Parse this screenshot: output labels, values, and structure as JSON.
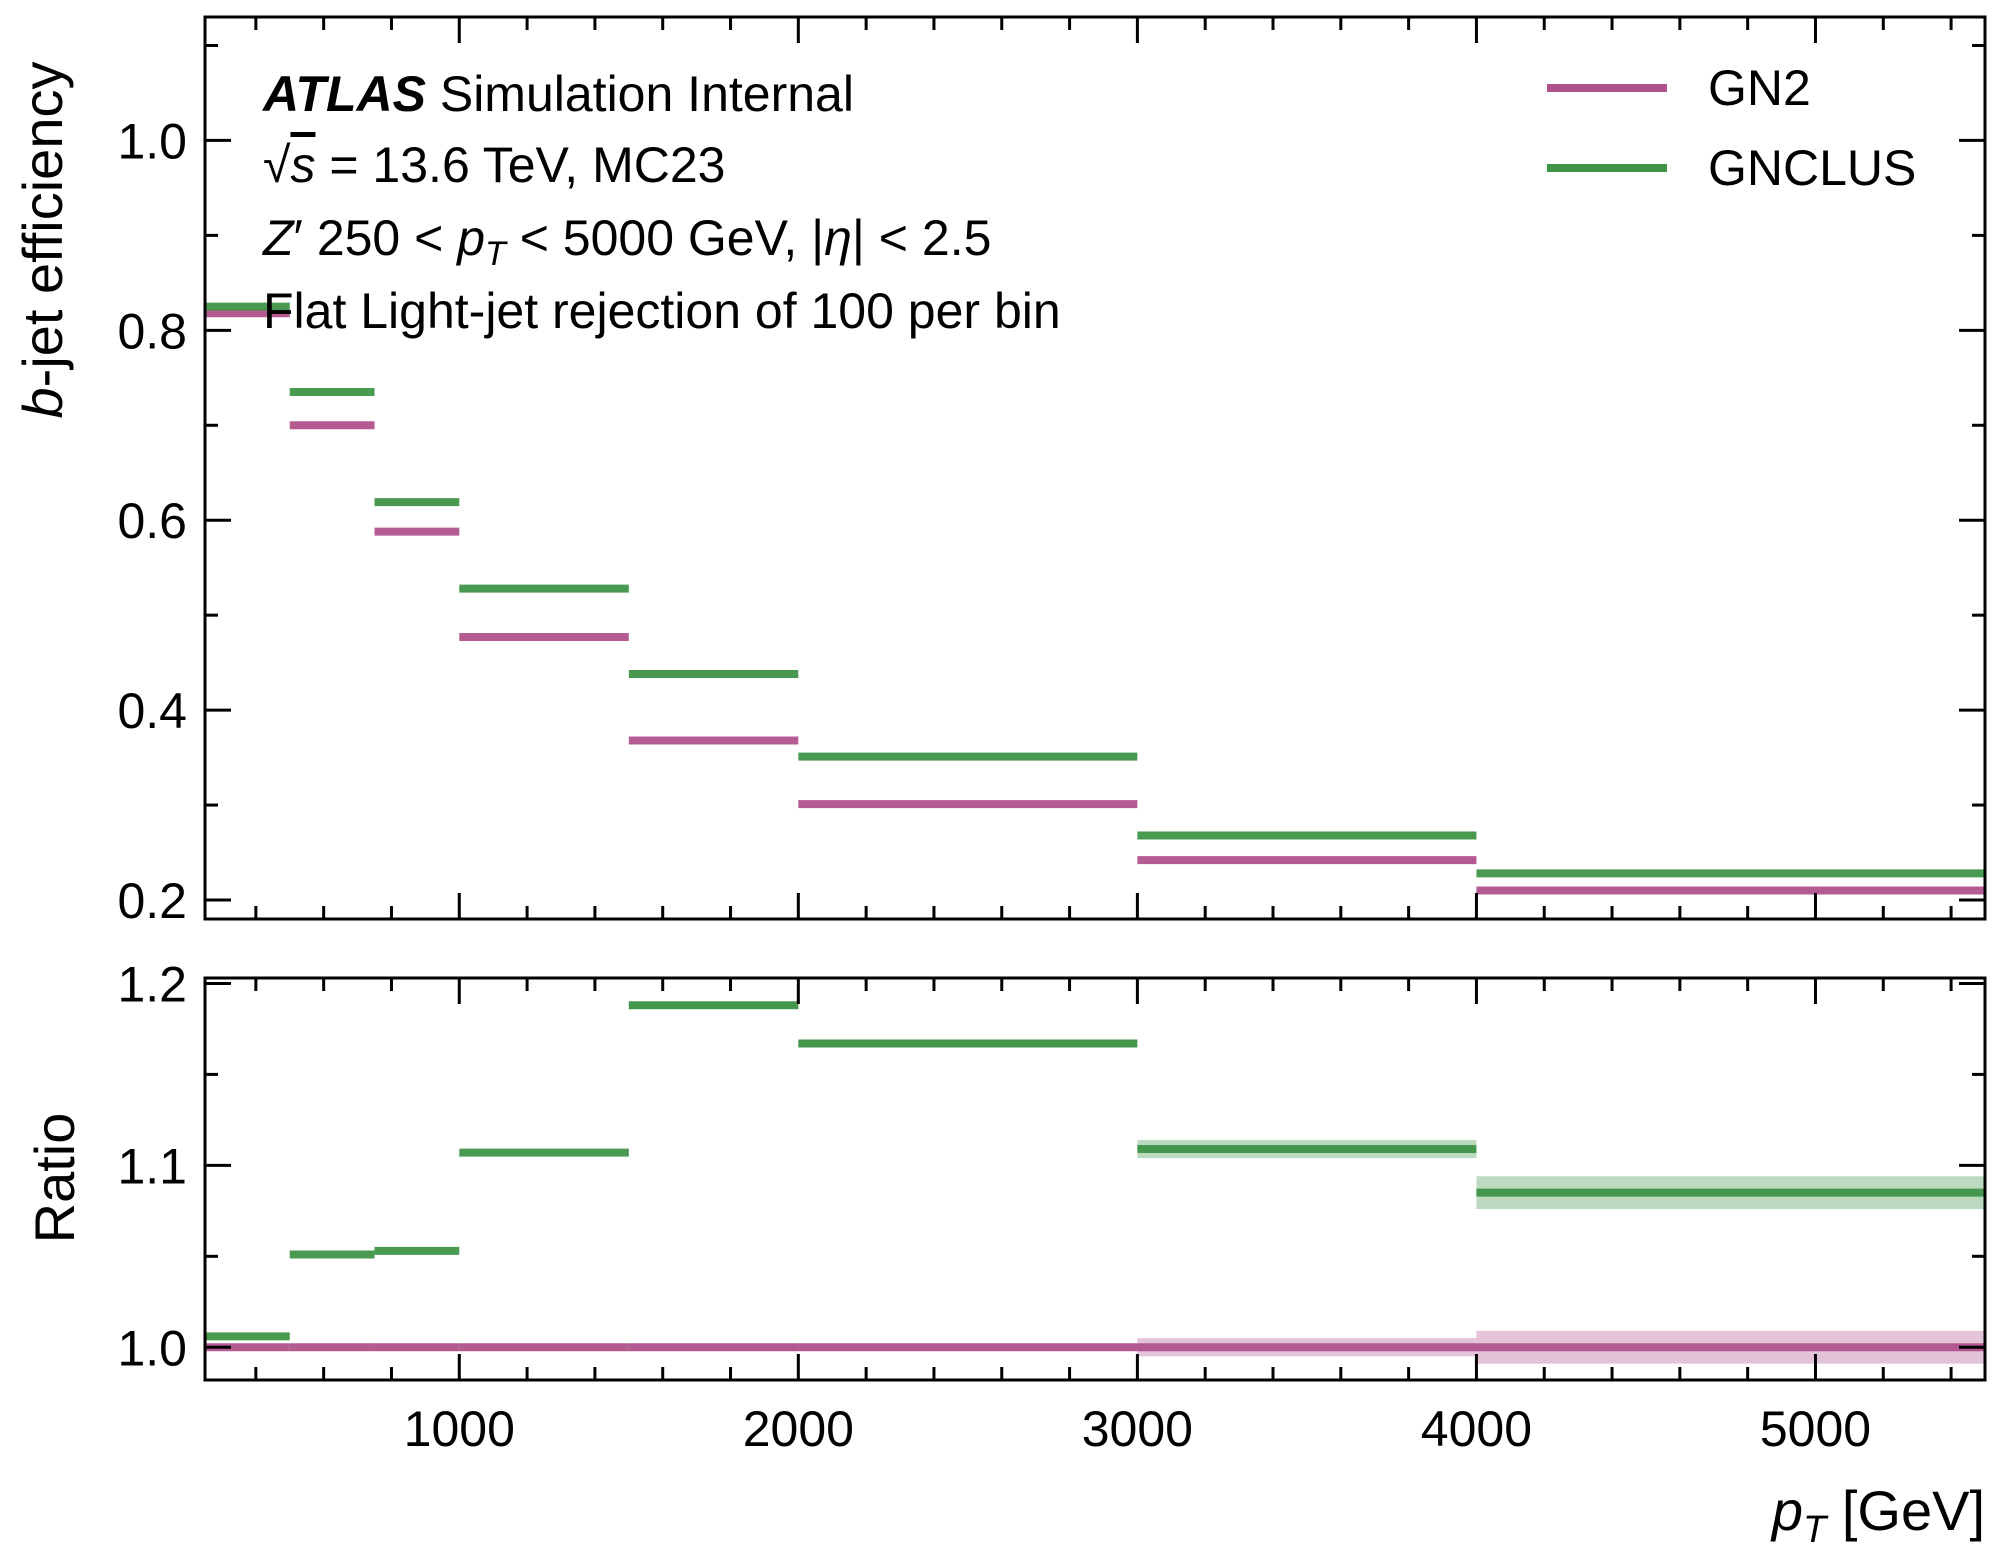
{
  "chart_data": {
    "type": "line",
    "plot_style": "step-bins",
    "colors": {
      "GN2": "#b0528c",
      "GNCLUS": "#3f9448"
    },
    "x": {
      "label_main": "p",
      "label_sub": "T",
      "label_unit": " [GeV]",
      "lim": [
        250,
        5500
      ],
      "ticks": [
        1000,
        2000,
        3000,
        4000,
        5000
      ],
      "tick_labels": [
        "1000",
        "2000",
        "3000",
        "4000",
        "5000"
      ],
      "bin_edges": [
        250,
        500,
        750,
        1000,
        1500,
        2000,
        3000,
        4000,
        5500
      ]
    },
    "legend": {
      "placement": "top-right",
      "entries": [
        "GN2",
        "GNCLUS"
      ]
    },
    "annotations": {
      "atlas": "ATLAS",
      "atlas_suffix": " Simulation Internal",
      "line2_sqrt": "√",
      "line2_s": "s",
      "line2_rest": " = 13.6 TeV, MC23",
      "line3_Z": "Z",
      "line3_prime": "′",
      "line3_a": " 250 < ",
      "line3_p": "p",
      "line3_T": "T",
      "line3_b": " < 5000 GeV, |",
      "line3_eta": "η",
      "line3_c": "| < 2.5",
      "line4": "Flat Light-jet rejection of 100 per bin"
    },
    "panels": [
      {
        "id": "efficiency",
        "ylabel_italic": "b",
        "ylabel_rest": "-jet efficiency",
        "ylim": [
          0.18,
          1.13
        ],
        "yticks": [
          0.2,
          0.4,
          0.6,
          0.8,
          1.0
        ],
        "ytick_labels": [
          "0.2",
          "0.4",
          "0.6",
          "0.8",
          "1.0"
        ],
        "series": [
          {
            "name": "GN2",
            "values": [
              0.818,
              0.7,
              0.588,
              0.477,
              0.368,
              0.301,
              0.242,
              0.21
            ]
          },
          {
            "name": "GNCLUS",
            "values": [
              0.825,
              0.735,
              0.619,
              0.528,
              0.438,
              0.351,
              0.268,
              0.228
            ]
          }
        ]
      },
      {
        "id": "ratio",
        "ylabel": "Ratio",
        "ylim": [
          0.982,
          1.203
        ],
        "yticks": [
          1.0,
          1.1,
          1.2
        ],
        "ytick_labels": [
          "1.0",
          "1.1",
          "1.2"
        ],
        "series": [
          {
            "name": "GN2",
            "values": [
              1.0,
              1.0,
              1.0,
              1.0,
              1.0,
              1.0,
              1.0,
              1.0
            ],
            "band": [
              0.0,
              0.0,
              0.0,
              0.0,
              0.002,
              0.002,
              0.005,
              0.009
            ]
          },
          {
            "name": "GNCLUS",
            "values": [
              1.006,
              1.051,
              1.053,
              1.107,
              1.188,
              1.167,
              1.109,
              1.085
            ],
            "band": [
              0.0,
              0.0,
              0.0,
              0.0,
              0.002,
              0.002,
              0.005,
              0.009
            ]
          }
        ]
      }
    ]
  }
}
